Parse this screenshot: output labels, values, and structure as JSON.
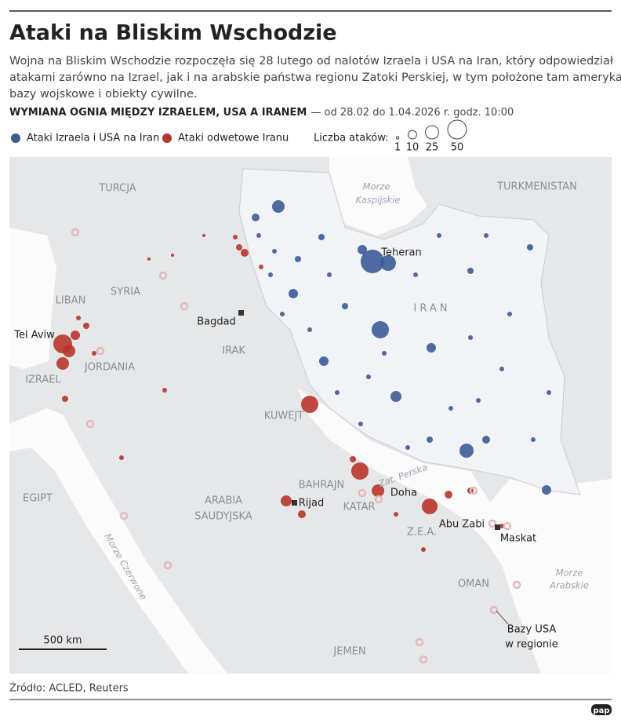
{
  "header": {
    "title": "Ataki na Bliskim Wschodzie",
    "lead": [
      "Wojna na Bliskim Wschodzie rozpoczęła się 28 lutego od nalotów Izraela i USA na Iran, który odpowiedział",
      "atakami zarówno na Izrael, jak i na arabskie państwa regionu Zatoki Perskiej, w tym położone tam amerykańskie",
      "bazy wojskowe i obiekty cywilne."
    ],
    "subheading": "WYMIANA OGNIA MIĘDZY IZRAELEM, USA A IRANEM",
    "period": "— od 28.02 do 1.04.2026 r. godz. 10:00"
  },
  "legend": {
    "series": [
      {
        "name": "Ataki Izraela i USA na Iran",
        "color": "#3d5a98"
      },
      {
        "name": "Ataki odwetowe Iranu",
        "color": "#b8352c"
      }
    ],
    "size_title": "Liczba ataków:",
    "sizes": [
      1,
      10,
      25,
      50
    ]
  },
  "map": {
    "countries": [
      "TURCJA",
      "TURKMENISTAN",
      "SYRIA",
      "LIBAN",
      "IRAK",
      "IRAN",
      "JORDANIA",
      "IZRAEL",
      "KUWEJT",
      "BAHRAJN",
      "KATAR",
      "Z.E.A.",
      "OMAN",
      "JEMEN",
      "EGIPT"
    ],
    "saudi": [
      "ARABIA",
      "SAUDYJSKA"
    ],
    "cities": [
      "Teheran",
      "Bagdad",
      "Tel Aviw",
      "Rijad",
      "Doha",
      "Abu Zabi",
      "Maskat"
    ],
    "caspian": [
      "Morze",
      "Kaspijskie"
    ],
    "gulf": "Zat. Perska",
    "red_sea": "Morze Czerwone",
    "arabian": [
      "Morze",
      "Arabskie"
    ],
    "scale": "500 km",
    "bases": [
      "Bazy USA",
      "w regionie"
    ]
  },
  "footer": {
    "source": "Źródło: ACLED, Reuters",
    "logo": "pap"
  }
}
